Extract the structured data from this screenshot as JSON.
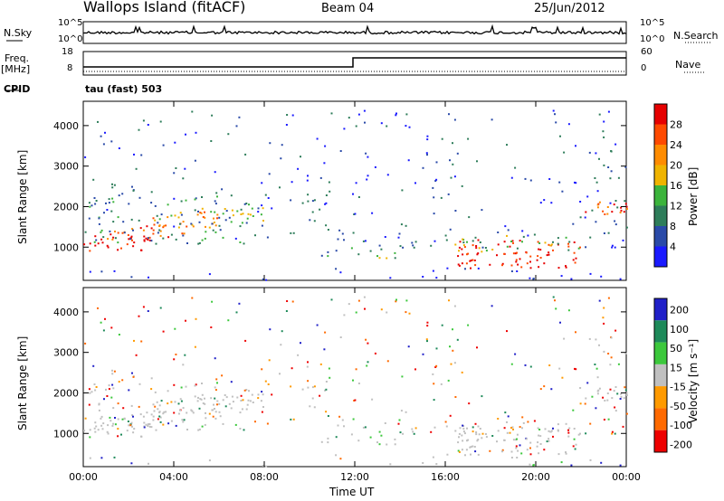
{
  "header": {
    "station": "Wallops Island (fitACF)",
    "beam": "Beam 04",
    "date": "25/Jun/2012"
  },
  "side_labels": {
    "nsky": "N.Sky",
    "freq": "Freq.",
    "freq_unit": "[MHz]",
    "cpid": "CPID",
    "nsearch": "N.Search",
    "nave": "Nave",
    "cpid_value": "tau (fast) 503"
  },
  "strip_ticks": {
    "nsky_left": [
      "10^5",
      "10^0"
    ],
    "nsky_right": [
      "10^5",
      "10^0"
    ],
    "freq_left": [
      "18",
      "8"
    ],
    "nave_right": [
      "60",
      "0"
    ]
  },
  "colors": {
    "power_scale": [
      "#1a1aff",
      "#2a4aa8",
      "#2e7d5a",
      "#3cb43c",
      "#f0b400",
      "#ff8c00",
      "#ff4a00",
      "#e60000"
    ],
    "velocity_scale": [
      "#2020c8",
      "#1e8a5a",
      "#3cc83c",
      "#c0c0c0",
      "#ff9a00",
      "#ff6a00",
      "#ee0000"
    ]
  },
  "chart_data": [
    {
      "type": "heatmap",
      "name": "power",
      "xlabel": "",
      "ylabel": "Slant Range [km]",
      "x_range": [
        "00:00",
        "00:00"
      ],
      "ylim": [
        180,
        4600
      ],
      "y_ticks": [
        "1000",
        "2000",
        "3000",
        "4000"
      ],
      "colorbar": {
        "label": "Power [dB]",
        "ticks": [
          "4",
          "8",
          "12",
          "16",
          "20",
          "24",
          "28"
        ]
      }
    },
    {
      "type": "heatmap",
      "name": "velocity",
      "xlabel": "Time UT",
      "ylabel": "Slant Range [km]",
      "x_ticks": [
        "00:00",
        "04:00",
        "08:00",
        "12:00",
        "16:00",
        "20:00",
        "00:00"
      ],
      "ylim": [
        180,
        4600
      ],
      "y_ticks": [
        "1000",
        "2000",
        "3000",
        "4000"
      ],
      "colorbar": {
        "label": "Velocity [m s⁻¹]",
        "ticks": [
          "200",
          "100",
          "50",
          "15",
          "-15",
          "-50",
          "-100",
          "-200"
        ]
      }
    }
  ]
}
